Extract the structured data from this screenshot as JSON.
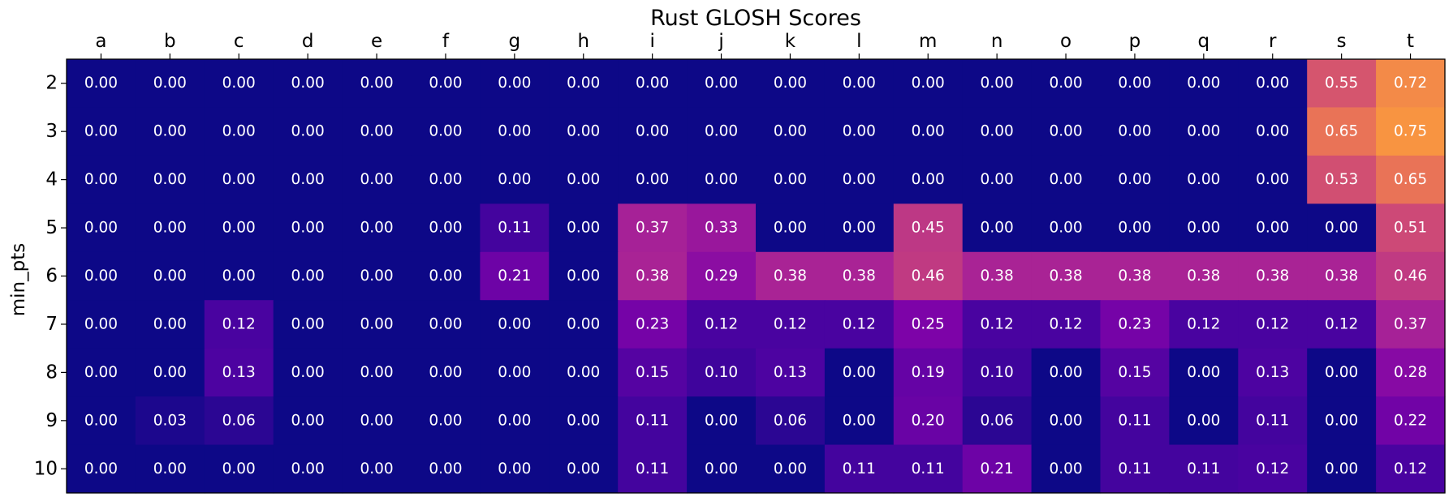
{
  "chart_data": {
    "type": "heatmap",
    "title": "Rust GLOSH Scores",
    "xlabel": "",
    "ylabel": "min_pts",
    "x_axis_position": "top",
    "colormap": "plasma",
    "color_range": [
      0,
      1
    ],
    "legend": "none",
    "grid": false,
    "value_format": "0.00",
    "x_categories": [
      "a",
      "b",
      "c",
      "d",
      "e",
      "f",
      "g",
      "h",
      "i",
      "j",
      "k",
      "l",
      "m",
      "n",
      "o",
      "p",
      "q",
      "r",
      "s",
      "t"
    ],
    "y_categories": [
      "2",
      "3",
      "4",
      "5",
      "6",
      "7",
      "8",
      "9",
      "10"
    ],
    "values": [
      [
        0.0,
        0.0,
        0.0,
        0.0,
        0.0,
        0.0,
        0.0,
        0.0,
        0.0,
        0.0,
        0.0,
        0.0,
        0.0,
        0.0,
        0.0,
        0.0,
        0.0,
        0.0,
        0.55,
        0.72
      ],
      [
        0.0,
        0.0,
        0.0,
        0.0,
        0.0,
        0.0,
        0.0,
        0.0,
        0.0,
        0.0,
        0.0,
        0.0,
        0.0,
        0.0,
        0.0,
        0.0,
        0.0,
        0.0,
        0.65,
        0.75
      ],
      [
        0.0,
        0.0,
        0.0,
        0.0,
        0.0,
        0.0,
        0.0,
        0.0,
        0.0,
        0.0,
        0.0,
        0.0,
        0.0,
        0.0,
        0.0,
        0.0,
        0.0,
        0.0,
        0.53,
        0.65
      ],
      [
        0.0,
        0.0,
        0.0,
        0.0,
        0.0,
        0.0,
        0.11,
        0.0,
        0.37,
        0.33,
        0.0,
        0.0,
        0.45,
        0.0,
        0.0,
        0.0,
        0.0,
        0.0,
        0.0,
        0.51
      ],
      [
        0.0,
        0.0,
        0.0,
        0.0,
        0.0,
        0.0,
        0.21,
        0.0,
        0.38,
        0.29,
        0.38,
        0.38,
        0.46,
        0.38,
        0.38,
        0.38,
        0.38,
        0.38,
        0.38,
        0.46
      ],
      [
        0.0,
        0.0,
        0.12,
        0.0,
        0.0,
        0.0,
        0.0,
        0.0,
        0.23,
        0.12,
        0.12,
        0.12,
        0.25,
        0.12,
        0.12,
        0.23,
        0.12,
        0.12,
        0.12,
        0.37
      ],
      [
        0.0,
        0.0,
        0.13,
        0.0,
        0.0,
        0.0,
        0.0,
        0.0,
        0.15,
        0.1,
        0.13,
        0.0,
        0.19,
        0.1,
        0.0,
        0.15,
        0.0,
        0.13,
        0.0,
        0.28
      ],
      [
        0.0,
        0.03,
        0.06,
        0.0,
        0.0,
        0.0,
        0.0,
        0.0,
        0.11,
        0.0,
        0.06,
        0.0,
        0.2,
        0.06,
        0.0,
        0.11,
        0.0,
        0.11,
        0.0,
        0.22
      ],
      [
        0.0,
        0.0,
        0.0,
        0.0,
        0.0,
        0.0,
        0.0,
        0.0,
        0.11,
        0.0,
        0.0,
        0.11,
        0.11,
        0.21,
        0.0,
        0.11,
        0.11,
        0.12,
        0.0,
        0.12
      ]
    ]
  }
}
